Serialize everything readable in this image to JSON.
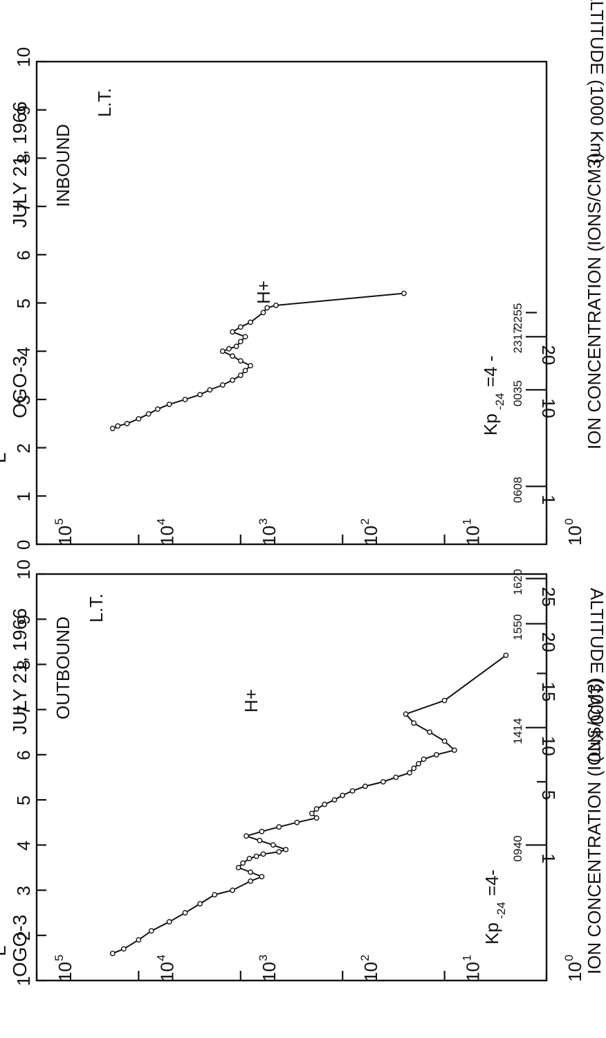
{
  "chart_data": [
    {
      "type": "line",
      "panel": "OUTBOUND",
      "satellite": "OGO-3",
      "date": "JULY 21, 1966",
      "pass": "OUTBOUND",
      "species": "H+",
      "kp_label": "Kp",
      "kp_sub": "-24",
      "kp_value": "=4-",
      "x_axis": {
        "label": "ION CONCENTRATION (IONS/CM3)",
        "scale": "log",
        "range": [
          1,
          100000
        ],
        "ticks": [
          {
            "base": "10",
            "exp": "0"
          },
          {
            "base": "10",
            "exp": "1"
          },
          {
            "base": "10",
            "exp": "2"
          },
          {
            "base": "10",
            "exp": "3"
          },
          {
            "base": "10",
            "exp": "4"
          },
          {
            "base": "10",
            "exp": "5"
          }
        ]
      },
      "y_axis": {
        "label": "L",
        "range": [
          1,
          10
        ],
        "ticks": [
          "1",
          "2",
          "3",
          "4",
          "5",
          "6",
          "7",
          "8",
          "9",
          "10"
        ]
      },
      "altitude_axis": {
        "label": "ALTITUDE (1000 Km)",
        "ticks": [
          {
            "label": "25",
            "L": 9.9
          },
          {
            "label": "20",
            "L": 8.9
          },
          {
            "label": "15",
            "L": 7.8
          },
          {
            "label": "10",
            "L": 6.6
          },
          {
            "label": "5",
            "L": 5.4
          },
          {
            "label": "1",
            "L": 4.0
          }
        ]
      },
      "lt_label": "L.T.",
      "local_time": [
        {
          "label": "1620",
          "L": 9.9
        },
        {
          "label": "1550",
          "L": 8.9
        },
        {
          "label": "1414",
          "L": 6.6
        },
        {
          "label": "0940",
          "L": 4.0
        }
      ],
      "series": [
        {
          "x": [
            2.5,
            10,
            24,
            20,
            14,
            10,
            8,
            12,
            16,
            18,
            20,
            22,
            30,
            40,
            60,
            80,
            100,
            120,
            150,
            180,
            200,
            180,
            280,
            420,
            620,
            880,
            650,
            480,
            360,
            420,
            600,
            700,
            820,
            950,
            1050,
            800,
            620,
            800,
            1200,
            1800,
            2500,
            3500,
            5000,
            7500,
            10000,
            14000,
            18000
          ],
          "y": [
            8.2,
            7.2,
            6.9,
            6.7,
            6.5,
            6.3,
            6.1,
            6.0,
            5.9,
            5.8,
            5.7,
            5.6,
            5.5,
            5.4,
            5.3,
            5.2,
            5.1,
            5.0,
            4.9,
            4.8,
            4.7,
            4.6,
            4.5,
            4.4,
            4.3,
            4.2,
            4.1,
            4.0,
            3.9,
            3.85,
            3.8,
            3.75,
            3.7,
            3.6,
            3.5,
            3.4,
            3.3,
            3.2,
            3.0,
            2.9,
            2.7,
            2.5,
            2.3,
            2.1,
            1.9,
            1.7,
            1.6
          ]
        }
      ]
    },
    {
      "type": "line",
      "panel": "INBOUND",
      "satellite": "OGO-3",
      "date": "JULY 21, 1966",
      "pass": "INBOUND",
      "species": "H+",
      "kp_label": "Kp",
      "kp_sub": "-24",
      "kp_value": "=4 -",
      "x_axis": {
        "label": "ION CONCENTRATION (IONS/CM3)",
        "scale": "log",
        "range": [
          1,
          100000
        ],
        "ticks": [
          {
            "base": "10",
            "exp": "0"
          },
          {
            "base": "10",
            "exp": "1"
          },
          {
            "base": "10",
            "exp": "2"
          },
          {
            "base": "10",
            "exp": "3"
          },
          {
            "base": "10",
            "exp": "4"
          },
          {
            "base": "10",
            "exp": "5"
          }
        ]
      },
      "y_axis": {
        "label": "L",
        "range": [
          0,
          10
        ],
        "ticks": [
          "0",
          "1",
          "2",
          "3",
          "4",
          "5",
          "6",
          "7",
          "8",
          "9",
          "10"
        ]
      },
      "altitude_axis": {
        "label": "ALTITUDE (1000 Km)",
        "ticks": [
          {
            "label": "20",
            "L": 4.3
          },
          {
            "label": "10",
            "L": 3.2
          },
          {
            "label": "1",
            "L": 1.2
          }
        ]
      },
      "lt_label": "L.T.",
      "local_time": [
        {
          "label": "2255",
          "L": 4.8
        },
        {
          "label": "2317",
          "L": 4.3
        },
        {
          "label": "0035",
          "L": 3.2
        },
        {
          "label": "0608",
          "L": 1.2
        }
      ],
      "series": [
        {
          "x": [
            25,
            450,
            550,
            600,
            800,
            1000,
            1200,
            900,
            1000,
            1100,
            1300,
            1500,
            1200,
            1000,
            800,
            900,
            1000,
            1200,
            1500,
            2000,
            2500,
            3500,
            5000,
            6500,
            8000,
            10000,
            13000,
            16000,
            18000
          ],
          "y": [
            5.2,
            4.95,
            4.9,
            4.8,
            4.6,
            4.5,
            4.4,
            4.3,
            4.2,
            4.1,
            4.05,
            4.0,
            3.9,
            3.8,
            3.7,
            3.6,
            3.5,
            3.4,
            3.3,
            3.2,
            3.1,
            3.0,
            2.9,
            2.8,
            2.7,
            2.6,
            2.5,
            2.45,
            2.4
          ]
        }
      ]
    }
  ]
}
